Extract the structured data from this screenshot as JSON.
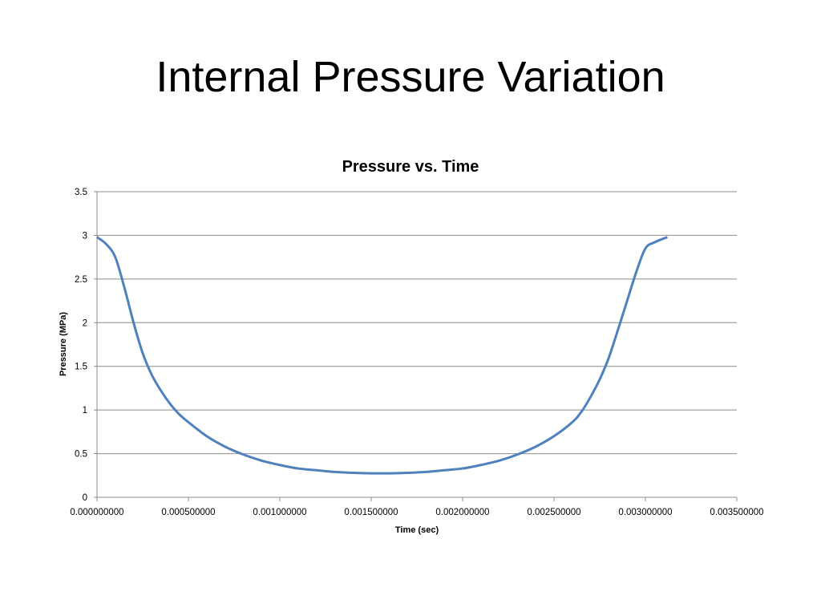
{
  "slide": {
    "title": "Internal Pressure Variation"
  },
  "chart_data": {
    "type": "line",
    "title": "Pressure vs. Time",
    "xlabel": "Time (sec)",
    "ylabel": "Pressure (MPa)",
    "xlim": [
      0,
      0.0035
    ],
    "ylim": [
      0,
      3.5
    ],
    "x_ticks": [
      "0.000000000",
      "0.000500000",
      "0.001000000",
      "0.001500000",
      "0.002000000",
      "0.002500000",
      "0.003000000",
      "0.003500000"
    ],
    "y_ticks": [
      "0",
      "0.5",
      "1",
      "1.5",
      "2",
      "2.5",
      "3",
      "3.5"
    ],
    "grid": "horizontal",
    "legend": "none",
    "series": [
      {
        "color": "#4F81BD",
        "x": [
          0,
          5e-05,
          0.0001,
          0.00015,
          0.0002,
          0.00025,
          0.0003,
          0.00035,
          0.0004,
          0.00045,
          0.0005,
          0.0006,
          0.0007,
          0.0008,
          0.0009,
          0.001,
          0.0011,
          0.0012,
          0.0013,
          0.0014,
          0.0015,
          0.0016,
          0.0017,
          0.0018,
          0.0019,
          0.002,
          0.0021,
          0.0022,
          0.0023,
          0.0024,
          0.0025,
          0.0026,
          0.00265,
          0.0027,
          0.00275,
          0.0028,
          0.00285,
          0.0029,
          0.00295,
          0.003,
          0.00305,
          0.00312
        ],
        "y": [
          2.98,
          2.9,
          2.75,
          2.4,
          2.0,
          1.65,
          1.4,
          1.22,
          1.07,
          0.95,
          0.86,
          0.7,
          0.58,
          0.49,
          0.42,
          0.37,
          0.33,
          0.31,
          0.29,
          0.28,
          0.275,
          0.275,
          0.28,
          0.29,
          0.31,
          0.33,
          0.37,
          0.42,
          0.49,
          0.58,
          0.7,
          0.86,
          0.98,
          1.15,
          1.35,
          1.6,
          1.92,
          2.25,
          2.58,
          2.85,
          2.92,
          2.98
        ]
      }
    ]
  }
}
